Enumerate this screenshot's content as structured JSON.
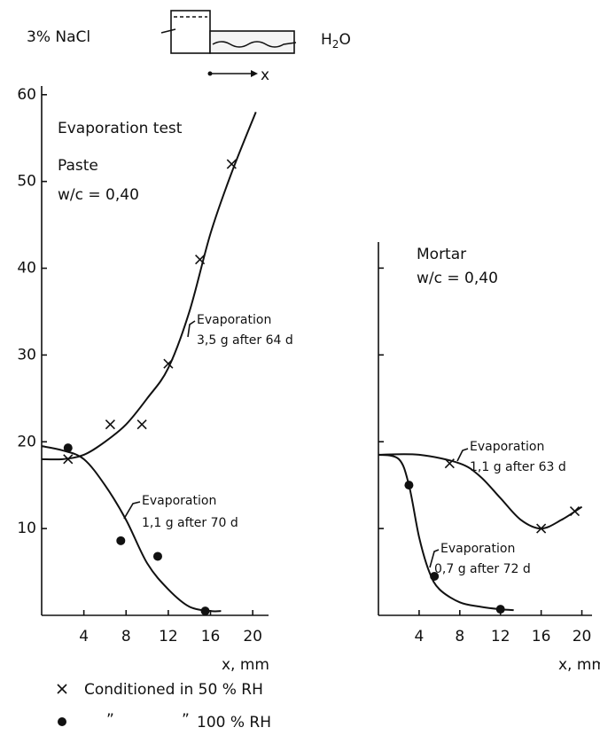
{
  "schematic": {
    "left_label": "3% NaCl",
    "right_label": "H",
    "right_sub": "2",
    "right_end": "O",
    "arrow_label": "x"
  },
  "legend": {
    "cross_label": "Conditioned in 50 % RH",
    "ditto": "”",
    "dot_label": "100 % RH"
  },
  "chart_data": [
    {
      "type": "scatter",
      "xlabel": "x, mm",
      "annotations": [
        "Evaporation test",
        "Paste",
        "w/c = 0,40",
        "Evaporation",
        "3,5 g after 64 d",
        "Evaporation",
        "1,1 g after 70 d"
      ],
      "xlim": [
        0,
        21.5
      ],
      "ylim": [
        0,
        61
      ],
      "xticks": [
        4,
        8,
        12,
        16,
        20
      ],
      "yticks": [
        10,
        20,
        30,
        40,
        50,
        60
      ],
      "color": "#111111",
      "series": [
        {
          "marker": "x",
          "x": [
            2.5,
            6.5,
            9.5,
            12,
            15,
            18
          ],
          "values": [
            18,
            22,
            22,
            29,
            41,
            52
          ]
        },
        {
          "marker": "dot",
          "x": [
            2.5,
            7.5,
            11,
            15.5
          ],
          "values": [
            19.3,
            8.6,
            6.8,
            0.5
          ]
        },
        {
          "marker": "none",
          "x": [
            0,
            2,
            4,
            6,
            8,
            10,
            12,
            14,
            16,
            18,
            20.3
          ],
          "values": [
            18,
            18,
            18.5,
            20,
            22,
            25,
            28.5,
            35,
            44,
            51,
            58
          ]
        },
        {
          "marker": "none",
          "x": [
            0,
            2,
            4,
            6,
            8,
            10,
            12,
            14,
            16,
            17
          ],
          "values": [
            19.5,
            19,
            18,
            15,
            11,
            6,
            3,
            1,
            0.5,
            0.5
          ]
        }
      ]
    },
    {
      "type": "scatter",
      "xlabel": "x, mm",
      "annotations": [
        "Mortar",
        "w/c = 0,40",
        "Evaporation",
        "1,1 g after 63 d",
        "Evaporation",
        "0,7 g after 72 d"
      ],
      "xlim": [
        0,
        21
      ],
      "ylim": [
        0,
        43
      ],
      "xticks": [
        4,
        8,
        12,
        16,
        20
      ],
      "yticks": [
        10,
        20,
        30,
        40
      ],
      "ytick_labels": false,
      "color": "#111111",
      "series": [
        {
          "marker": "x",
          "x": [
            7,
            16,
            19.3
          ],
          "values": [
            17.5,
            10,
            12
          ]
        },
        {
          "marker": "dot",
          "x": [
            3,
            5.5,
            12
          ],
          "values": [
            15,
            4.5,
            0.7
          ]
        },
        {
          "marker": "none",
          "x": [
            0,
            4,
            8,
            10,
            12,
            14,
            16,
            18,
            20
          ],
          "values": [
            18.5,
            18.5,
            17.5,
            16,
            13.5,
            11,
            10,
            11,
            12.5
          ]
        },
        {
          "marker": "none",
          "x": [
            0,
            2,
            3,
            4,
            5,
            6,
            8,
            10,
            12,
            13.3
          ],
          "values": [
            18.5,
            18,
            15,
            9,
            5,
            3,
            1.5,
            1,
            0.7,
            0.6
          ]
        }
      ]
    }
  ]
}
